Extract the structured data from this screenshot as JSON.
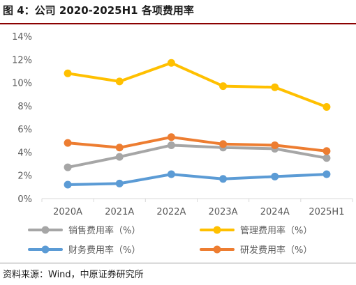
{
  "title": "图 4：公司 2020-2025H1 各项费用率",
  "source": "资料来源：Wind，中原证券研究所",
  "chart_data": {
    "type": "line",
    "title": "图 4：公司 2020-2025H1 各项费用率",
    "categories": [
      "2020A",
      "2021A",
      "2022A",
      "2023A",
      "2024A",
      "2025H1"
    ],
    "yticks": [
      "0%",
      "2%",
      "4%",
      "6%",
      "8%",
      "10%",
      "12%",
      "14%"
    ],
    "ylim": [
      0,
      14
    ],
    "grid": false,
    "legend_position": "bottom",
    "series": [
      {
        "name": "销售费用率（%）",
        "color": "#a6a6a6",
        "values": [
          2.7,
          3.6,
          4.6,
          4.4,
          4.3,
          3.5
        ]
      },
      {
        "name": "管理费用率（%）",
        "color": "#ffc000",
        "values": [
          10.8,
          10.1,
          11.7,
          9.7,
          9.6,
          7.9
        ]
      },
      {
        "name": "财务费用率（%）",
        "color": "#5b9bd5",
        "values": [
          1.2,
          1.3,
          2.1,
          1.7,
          1.9,
          2.1
        ]
      },
      {
        "name": "研发费用率（%）",
        "color": "#ed7d31",
        "values": [
          4.8,
          4.4,
          5.3,
          4.7,
          4.6,
          4.1
        ]
      }
    ]
  }
}
